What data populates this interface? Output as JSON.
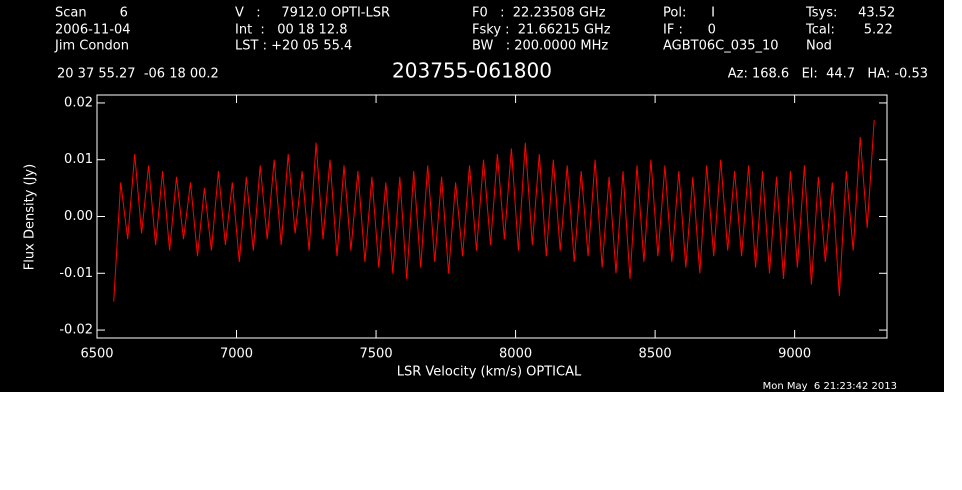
{
  "chart_data": {
    "type": "line",
    "title": "203755-061800",
    "header": {
      "columns": [
        [
          "Scan        6",
          "2006-11-04",
          "Jim Condon"
        ],
        [
          "V   :     7912.0 OPTI-LSR",
          "Int  :   00 18 12.8",
          "LST : +20 05 55.4"
        ],
        [
          "F0   :  22.23508 GHz",
          "Fsky :  21.66215 GHz",
          "BW   : 200.0000 MHz"
        ],
        [
          "Pol:      I",
          "IF :      0",
          "AGBT06C_035_10"
        ],
        [
          "Tsys:     43.52",
          "Tcal:       5.22",
          "Nod"
        ]
      ],
      "coordinates": "20 37 55.27  -06 18 00.2",
      "position": "Az: 168.6   El:  44.7   HA: -0.53"
    },
    "xlabel": "LSR Velocity (km/s) OPTICAL",
    "ylabel": "Flux Density (Jy)",
    "timestamp": "Mon May  6 21:23:42 2013",
    "xlim": [
      6500,
      9331
    ],
    "ylim": [
      -0.0214,
      0.0214
    ],
    "xticks": [
      6500,
      7000,
      7500,
      8000,
      8500,
      9000
    ],
    "yticks": [
      -0.02,
      -0.01,
      {
        "value": 0,
        "label": "0.00"
      },
      0.01,
      0.02
    ],
    "series": [
      {
        "color": "#ff0000",
        "x": [
          6560,
          6585,
          6610,
          6635,
          6660,
          6685,
          6710,
          6735,
          6760,
          6785,
          6810,
          6835,
          6860,
          6885,
          6910,
          6935,
          6960,
          6985,
          7010,
          7035,
          7060,
          7085,
          7110,
          7135,
          7160,
          7185,
          7210,
          7235,
          7260,
          7285,
          7310,
          7335,
          7360,
          7385,
          7410,
          7435,
          7460,
          7485,
          7510,
          7535,
          7560,
          7585,
          7610,
          7635,
          7660,
          7685,
          7710,
          7735,
          7760,
          7785,
          7810,
          7835,
          7860,
          7885,
          7910,
          7935,
          7960,
          7985,
          8010,
          8035,
          8060,
          8085,
          8110,
          8135,
          8160,
          8185,
          8210,
          8235,
          8260,
          8285,
          8310,
          8335,
          8360,
          8385,
          8410,
          8435,
          8460,
          8485,
          8510,
          8535,
          8560,
          8585,
          8610,
          8635,
          8660,
          8685,
          8710,
          8735,
          8760,
          8785,
          8810,
          8835,
          8860,
          8885,
          8910,
          8935,
          8960,
          8985,
          9010,
          9035,
          9060,
          9085,
          9110,
          9135,
          9160,
          9185,
          9210,
          9235,
          9260,
          9285
        ],
        "values": [
          -0.015,
          0.006,
          -0.004,
          0.011,
          -0.003,
          0.009,
          -0.005,
          0.008,
          -0.006,
          0.007,
          -0.004,
          0.006,
          -0.007,
          0.005,
          -0.006,
          0.008,
          -0.005,
          0.006,
          -0.008,
          0.007,
          -0.006,
          0.009,
          -0.004,
          0.01,
          -0.005,
          0.011,
          -0.003,
          0.008,
          -0.006,
          0.013,
          -0.004,
          0.01,
          -0.007,
          0.009,
          -0.006,
          0.008,
          -0.008,
          0.007,
          -0.009,
          0.006,
          -0.01,
          0.007,
          -0.011,
          0.008,
          -0.009,
          0.009,
          -0.008,
          0.007,
          -0.01,
          0.006,
          -0.007,
          0.009,
          -0.006,
          0.01,
          -0.005,
          0.011,
          -0.004,
          0.012,
          -0.006,
          0.013,
          -0.005,
          0.011,
          -0.007,
          0.01,
          -0.006,
          0.009,
          -0.008,
          0.008,
          -0.007,
          0.01,
          -0.009,
          0.007,
          -0.01,
          0.008,
          -0.011,
          0.009,
          -0.008,
          0.01,
          -0.007,
          0.009,
          -0.008,
          0.008,
          -0.009,
          0.007,
          -0.01,
          0.009,
          -0.007,
          0.01,
          -0.006,
          0.008,
          -0.007,
          0.009,
          -0.009,
          0.008,
          -0.01,
          0.007,
          -0.011,
          0.008,
          -0.009,
          0.009,
          -0.012,
          0.007,
          -0.008,
          0.006,
          -0.014,
          0.008,
          -0.006,
          0.014,
          -0.002,
          0.017
        ]
      }
    ]
  }
}
